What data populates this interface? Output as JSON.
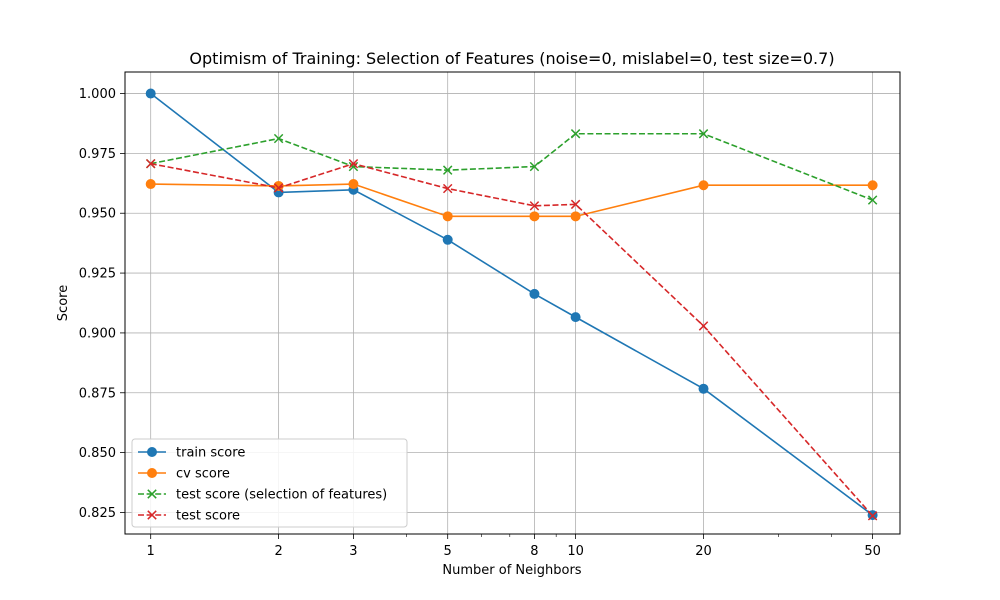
{
  "chart_data": {
    "type": "line",
    "title": "Optimism of Training: Selection of Features (noise=0, mislabel=0, test size=0.7)",
    "xlabel": "Number of Neighbors",
    "ylabel": "Score",
    "xscale": "log",
    "x": [
      1,
      2,
      3,
      5,
      8,
      10,
      20,
      50
    ],
    "xticks": [
      "1",
      "2",
      "3",
      "5",
      "8",
      "10",
      "20",
      "50"
    ],
    "xlim": [
      0.87,
      58
    ],
    "ylim": [
      0.816,
      1.009
    ],
    "yticks": [
      0.825,
      0.85,
      0.875,
      0.9,
      0.925,
      0.95,
      0.975,
      1.0
    ],
    "ytick_labels": [
      "0.825",
      "0.850",
      "0.875",
      "0.900",
      "0.925",
      "0.950",
      "0.975",
      "1.000"
    ],
    "grid": true,
    "legend_position": "lower-left",
    "series": [
      {
        "name": "train score",
        "color": "#1f77b4",
        "linestyle": "solid",
        "marker": "circle",
        "values": [
          1.0,
          0.9587,
          0.9598,
          0.9389,
          0.9163,
          0.9066,
          0.8767,
          0.8239
        ]
      },
      {
        "name": "cv score",
        "color": "#ff7f0e",
        "linestyle": "solid",
        "marker": "circle",
        "values": [
          0.9622,
          0.9614,
          0.9622,
          0.9487,
          0.9487,
          0.9487,
          0.9617,
          0.9617
        ]
      },
      {
        "name": "test score (selection of features)",
        "color": "#2ca02c",
        "linestyle": "dashed",
        "marker": "x",
        "values": [
          0.9707,
          0.9812,
          0.9695,
          0.968,
          0.9695,
          0.9832,
          0.9832,
          0.9555
        ]
      },
      {
        "name": "test score",
        "color": "#d62728",
        "linestyle": "dashed",
        "marker": "x",
        "values": [
          0.9707,
          0.9606,
          0.9707,
          0.9603,
          0.9531,
          0.9537,
          0.9029,
          0.8236
        ]
      }
    ]
  }
}
